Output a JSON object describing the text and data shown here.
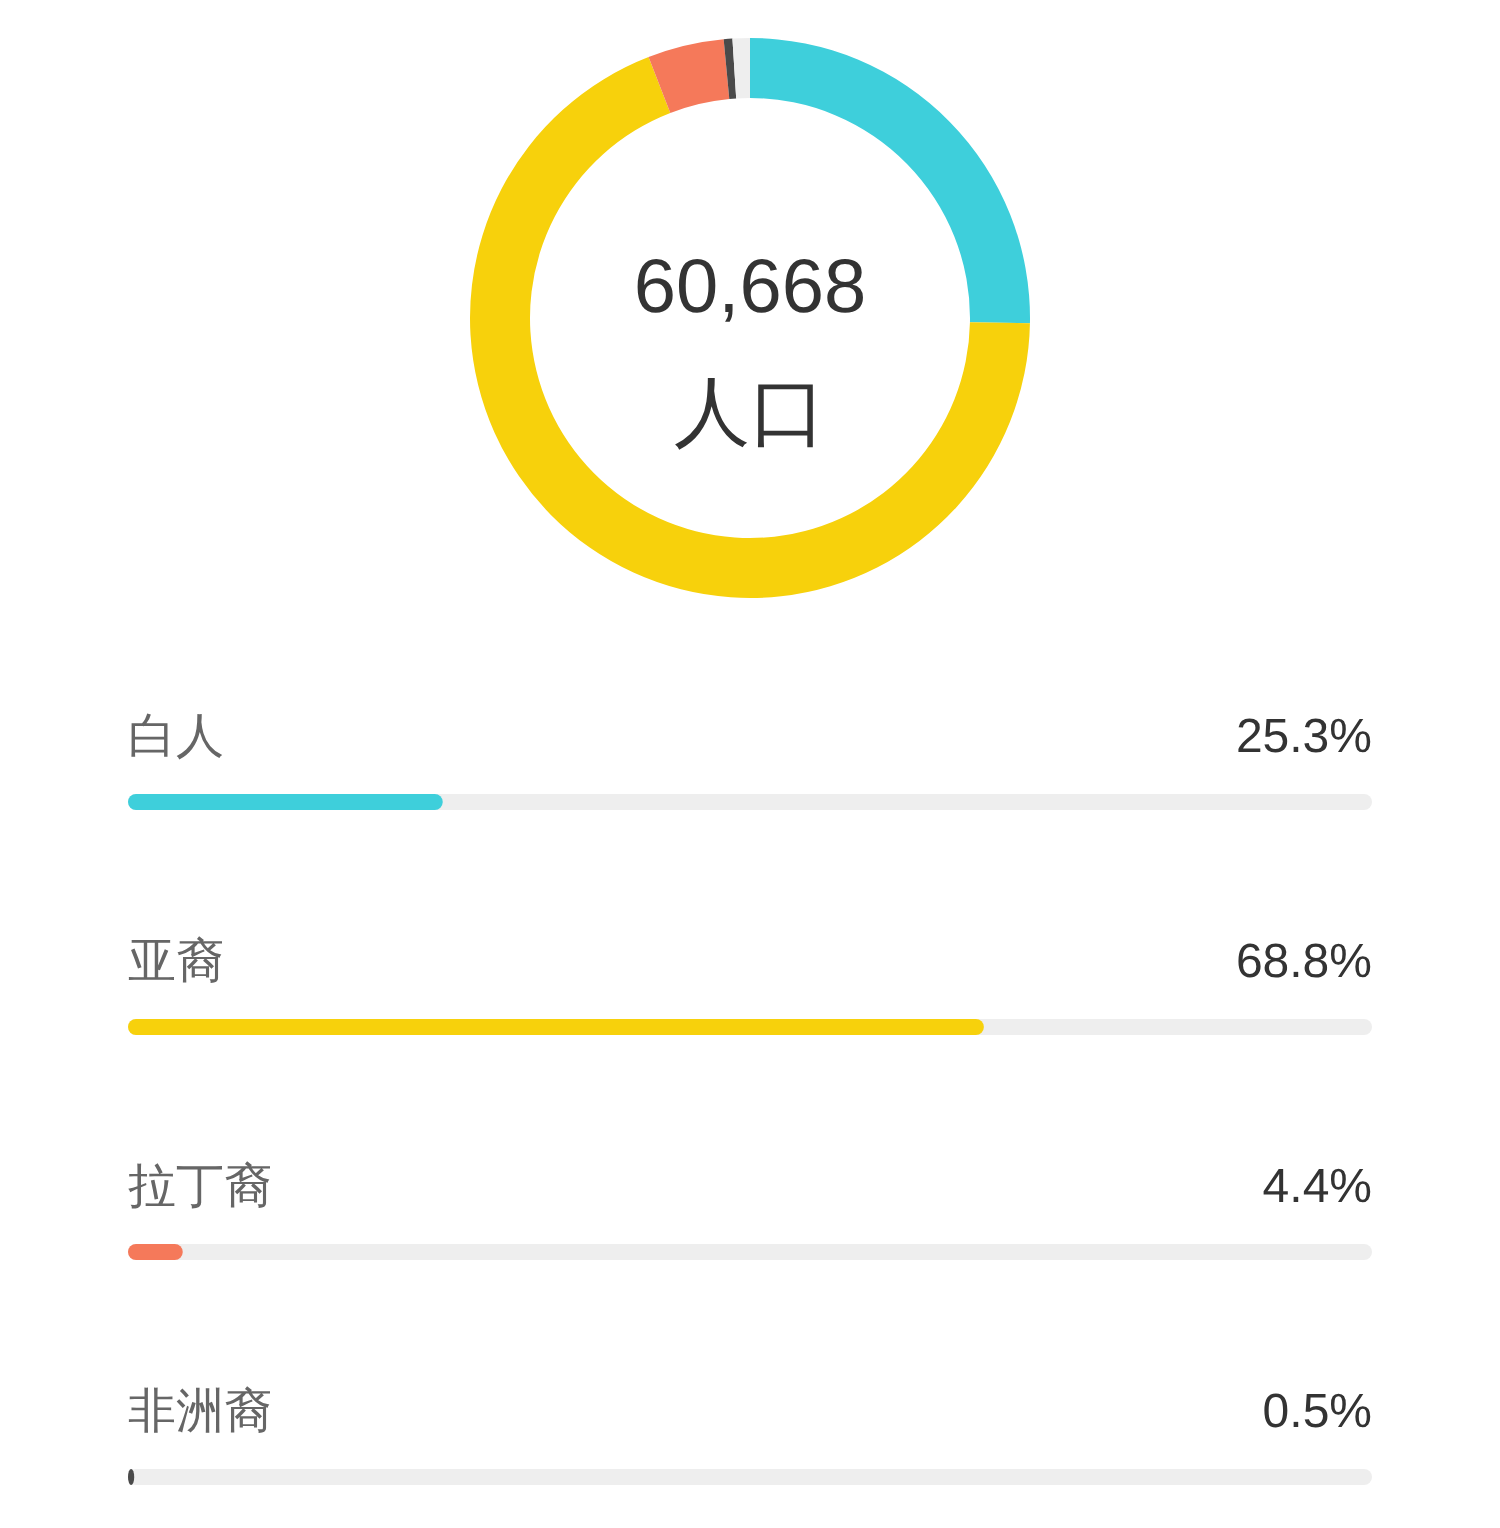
{
  "chart_data": [
    {
      "type": "donut",
      "categories": [
        null,
        null,
        null,
        null,
        null
      ],
      "values": [
        25.3,
        68.8,
        4.4,
        0.5,
        1.0
      ],
      "colors": [
        "#3ecfdb",
        "#f7d10c",
        "#f5795a",
        "#4a4a4a",
        "#eeeeee"
      ],
      "annotations": [
        "60,668",
        "人口"
      ]
    },
    {
      "type": "bar",
      "orientation": "horizontal",
      "categories": [
        "白人",
        "亚裔",
        "拉丁裔",
        "非洲裔"
      ],
      "values": [
        25.3,
        68.8,
        4.4,
        0.5
      ],
      "colors": [
        "#3ecfdb",
        "#f7d10c",
        "#f5795a",
        "#4a4a4a"
      ],
      "value_labels": [
        "25.3%",
        "68.8%",
        "4.4%",
        "0.5%"
      ],
      "xlim": [
        0,
        100
      ]
    }
  ]
}
